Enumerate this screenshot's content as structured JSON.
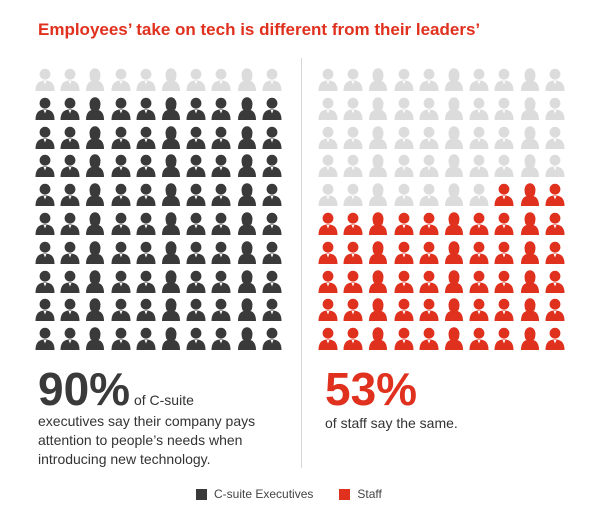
{
  "title": "Employees’ take on tech is different from their leaders’",
  "colors": {
    "csuite": "#3a3a3a",
    "staff": "#e0301e",
    "empty": "#dcdcdc",
    "title": "#e0301e"
  },
  "icons": {
    "person": "person-icon"
  },
  "stats": {
    "csuite": {
      "pct": "90%",
      "lead": " of C-suite",
      "rest": "executives say their company pays attention to people’s needs when introducing new technology."
    },
    "staff": {
      "pct": "53%",
      "rest": "of staff say the same."
    }
  },
  "legend": [
    {
      "label": "C-suite Executives",
      "color": "#3a3a3a"
    },
    {
      "label": "Staff",
      "color": "#e0301e"
    }
  ],
  "chart_data": {
    "type": "pictogram",
    "title": "Employees’ take on tech is different from their leaders’",
    "grid": {
      "rows": 10,
      "cols": 10
    },
    "series": [
      {
        "name": "C-suite Executives",
        "values": [
          90
        ],
        "total": 100
      },
      {
        "name": "Staff",
        "values": [
          53
        ],
        "total": 100
      }
    ]
  }
}
